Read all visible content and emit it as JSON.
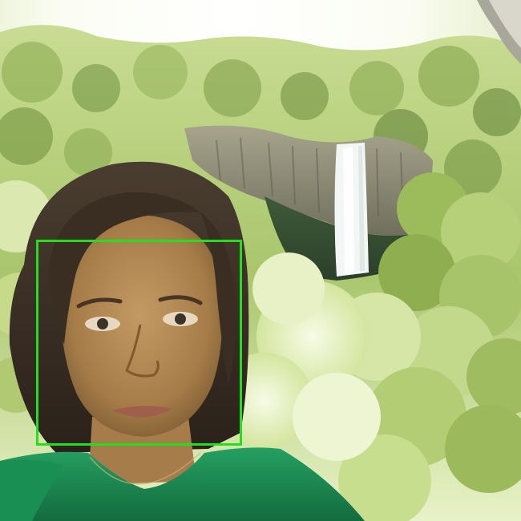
{
  "photo": {
    "subject": "selfie-with-waterfall",
    "colors": {
      "sky": "#ffffff",
      "foliage_light": "#d9e8a8",
      "foliage_mid": "#9fbf5a",
      "foliage_dark": "#4f6e2a",
      "cliff": "#8a8a78",
      "waterfall": "#f2f6f4",
      "hair": "#3b3026",
      "skin": "#b58a55",
      "shirt": "#1f8a55"
    }
  },
  "overlay": {
    "face_box_color": "#22e01e"
  }
}
